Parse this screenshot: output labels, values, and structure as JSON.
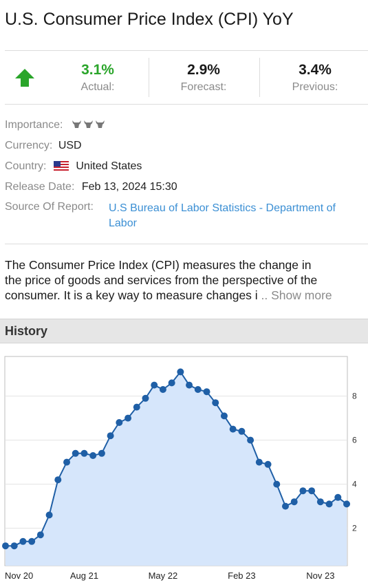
{
  "title": "U.S. Consumer Price Index (CPI) YoY",
  "icons": {
    "trend": "arrow-up-icon",
    "importance": "bull-icon",
    "flag": "us-flag-icon"
  },
  "colors": {
    "up": "#2aa52a",
    "link": "#3b8fd4",
    "line": "#1f5fa6",
    "fill": "#d6e6fb"
  },
  "stats": {
    "actual": {
      "value": "3.1%",
      "label": "Actual:"
    },
    "forecast": {
      "value": "2.9%",
      "label": "Forecast:"
    },
    "previous": {
      "value": "3.4%",
      "label": "Previous:"
    }
  },
  "details": {
    "importance_label": "Importance:",
    "importance_level": 3,
    "currency_label": "Currency:",
    "currency": "USD",
    "country_label": "Country:",
    "country": "United States",
    "release_label": "Release Date:",
    "release": "Feb 13, 2024 15:30",
    "source_label": "Source Of Report:",
    "source_line1": "U.S Bureau of Labor Statistics - Department of",
    "source_line2": "Labor"
  },
  "description": {
    "line1": "The Consumer Price Index (CPI) measures the change in",
    "line2": "the price of goods and services from the perspective of the",
    "line3": "consumer. It is a key way to measure changes i",
    "more": ".. Show more"
  },
  "history_header": "History",
  "chart_data": {
    "type": "area",
    "x_tick_labels": [
      "Nov 20",
      "Aug 21",
      "May 22",
      "Feb 23",
      "Nov 23"
    ],
    "y_ticks": [
      2,
      4,
      6,
      8
    ],
    "ylim": [
      0.3,
      9.8
    ],
    "grid": true,
    "y_axis_position": "right",
    "values": [
      1.2,
      1.2,
      1.4,
      1.4,
      1.7,
      2.6,
      4.2,
      5.0,
      5.4,
      5.4,
      5.3,
      5.4,
      6.2,
      6.8,
      7.0,
      7.5,
      7.9,
      8.5,
      8.3,
      8.6,
      9.1,
      8.5,
      8.3,
      8.2,
      7.7,
      7.1,
      6.5,
      6.4,
      6.0,
      5.0,
      4.9,
      4.0,
      3.0,
      3.2,
      3.7,
      3.7,
      3.2,
      3.1,
      3.4,
      3.1
    ]
  }
}
